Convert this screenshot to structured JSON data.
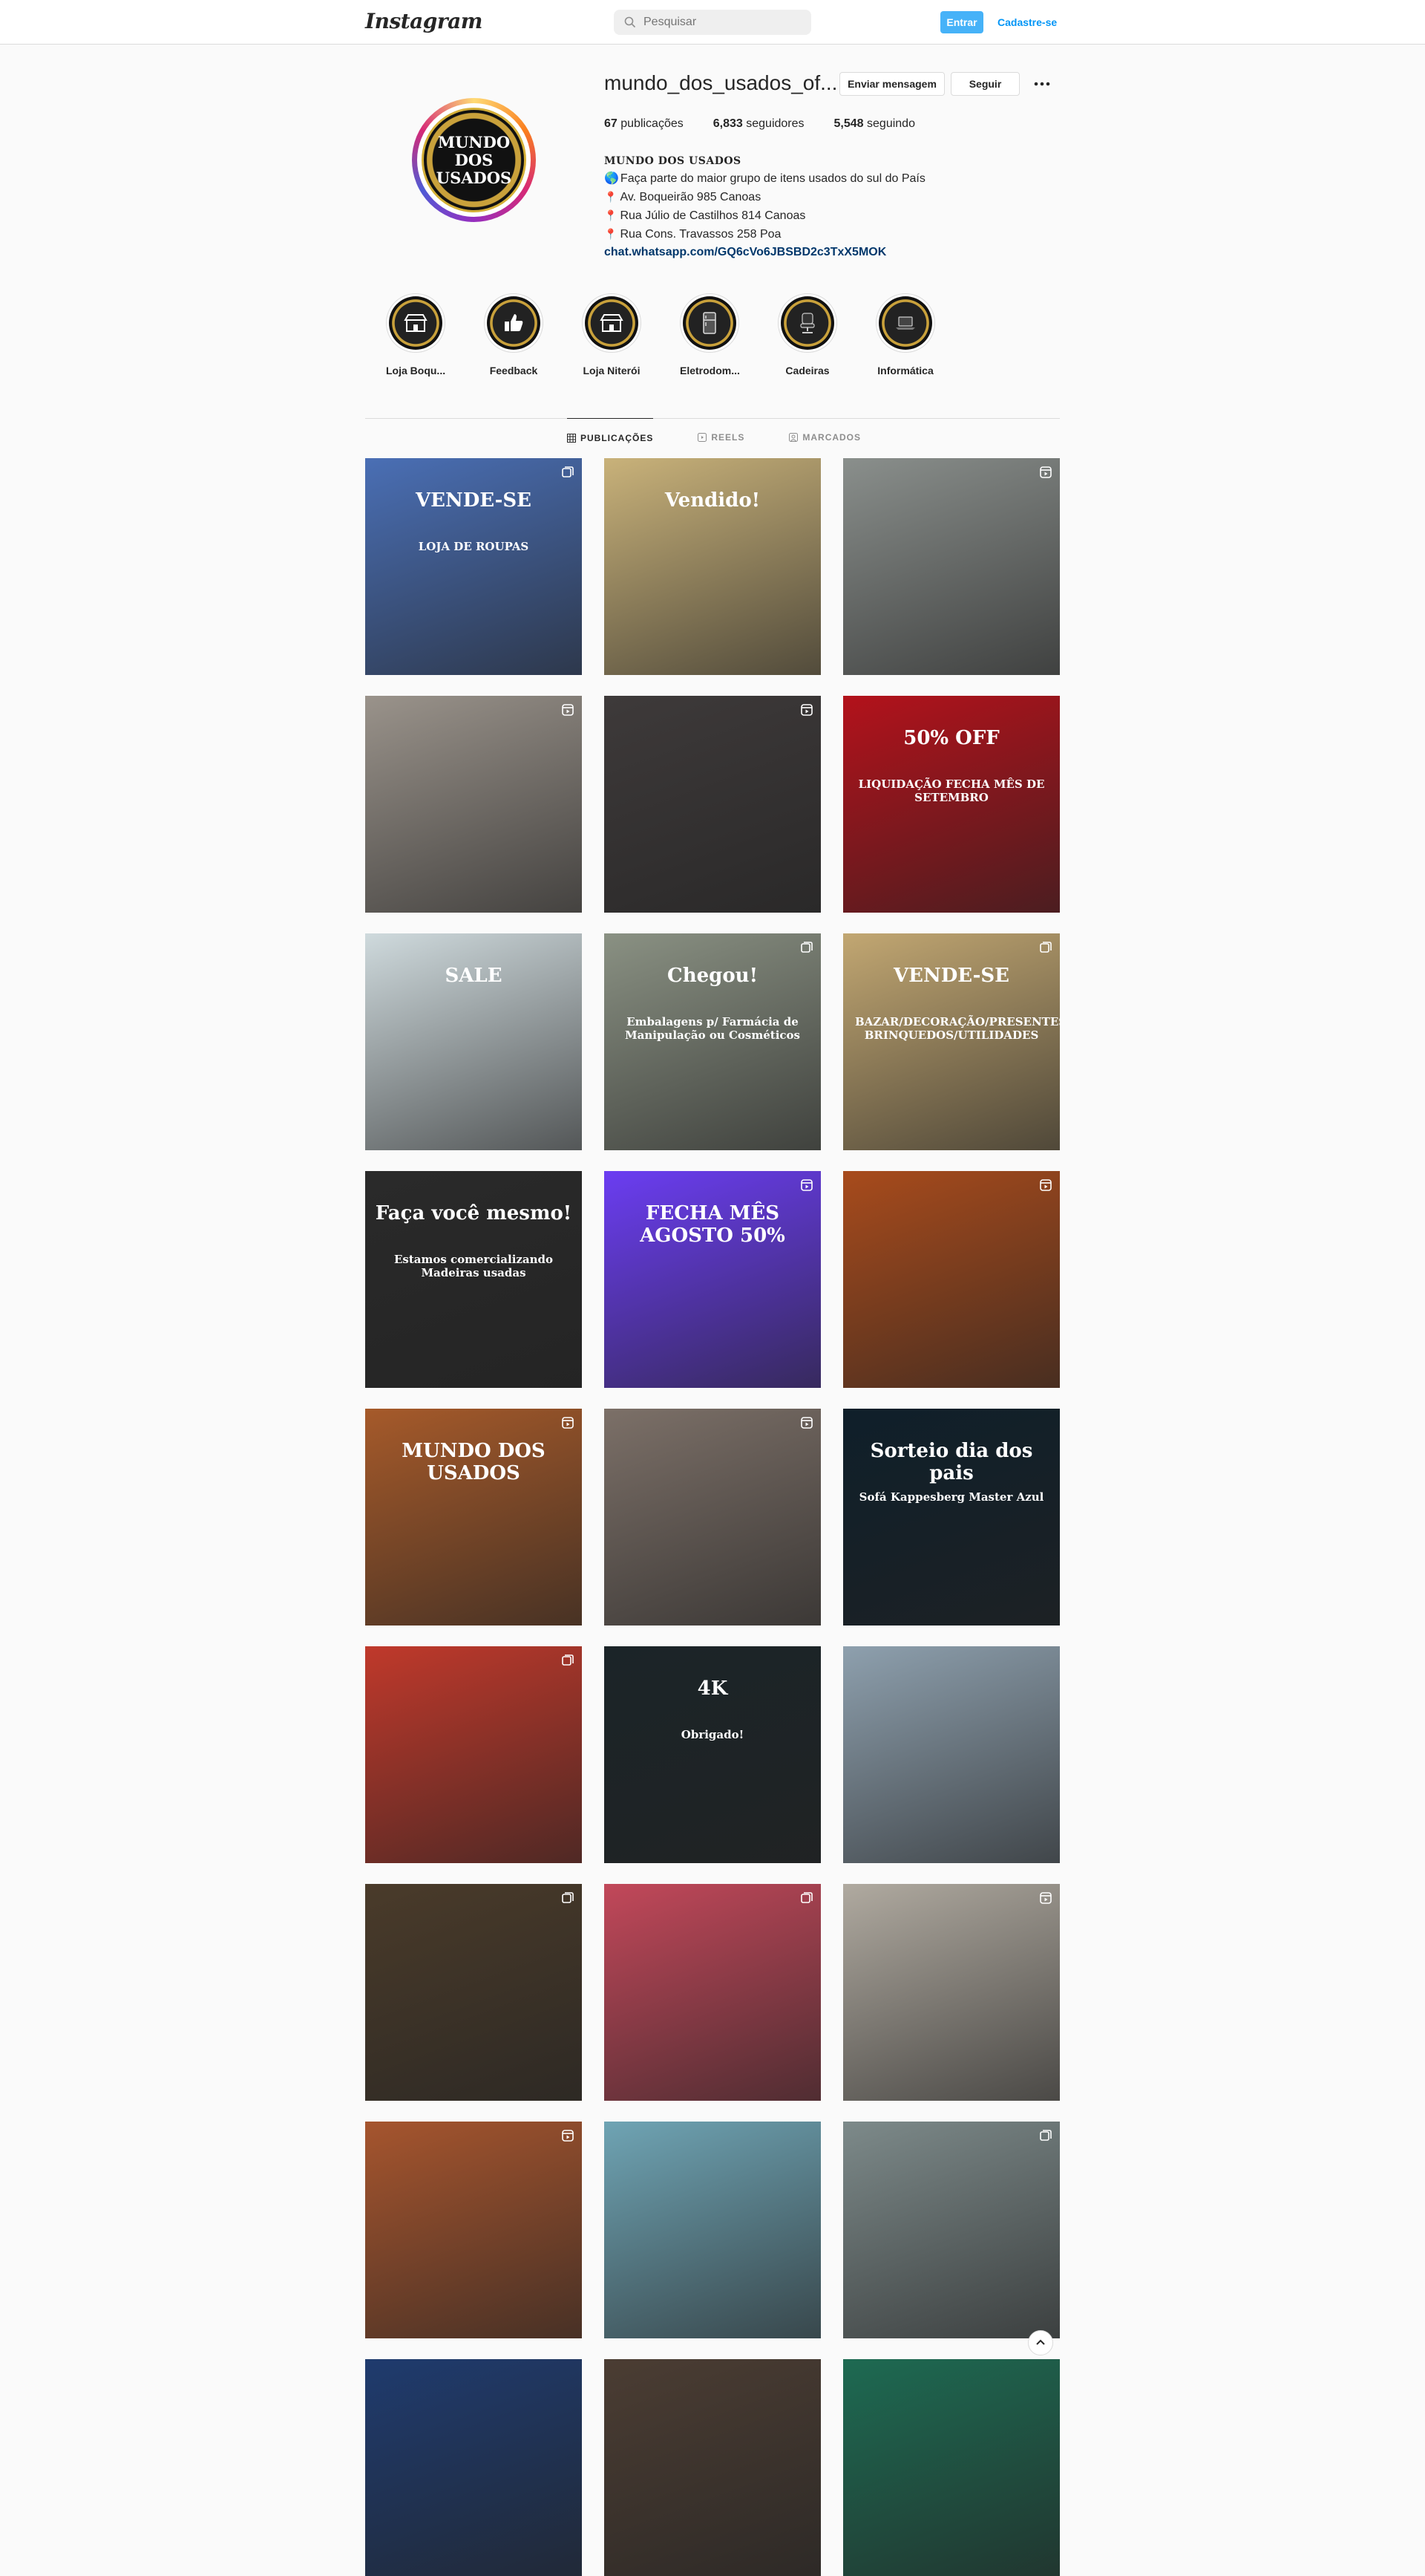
{
  "nav": {
    "logo": "Instagram",
    "search_placeholder": "Pesquisar",
    "login_label": "Entrar",
    "signup_label": "Cadastre-se"
  },
  "profile": {
    "username": "mundo_dos_usados_of...",
    "message_label": "Enviar mensagem",
    "follow_label": "Seguir",
    "avatar_text": [
      "MUNDO",
      "DOS",
      "USADOS"
    ],
    "stats": {
      "posts_count": "67",
      "posts_label": "publicações",
      "followers_count": "6,833",
      "followers_label": "seguidores",
      "following_count": "5,548",
      "following_label": "seguindo"
    },
    "bio": {
      "name": "MUNDO DOS USADOS",
      "line1": "Faça parte do maior grupo de itens usados do sul do País",
      "line2": "Av. Boqueirão 985 Canoas",
      "line3": "Rua Júlio de Castilhos 814 Canoas",
      "line4": "Rua Cons. Travassos 258 Poa",
      "link": "chat.whatsapp.com/GQ6cVo6JBSBD2c3TxX5MOK"
    }
  },
  "highlights": [
    {
      "label": "Loja Boqu...",
      "icon": "store-icon"
    },
    {
      "label": "Feedback",
      "icon": "thumbs-up-icon"
    },
    {
      "label": "Loja Niterói",
      "icon": "store-icon"
    },
    {
      "label": "Eletrodom...",
      "icon": "fridge-icon"
    },
    {
      "label": "Cadeiras",
      "icon": "chair-icon"
    },
    {
      "label": "Informática",
      "icon": "laptop-icon"
    }
  ],
  "tabs": [
    {
      "label": "PUBLICAÇÕES",
      "active": true
    },
    {
      "label": "REELS",
      "active": false
    },
    {
      "label": "MARCADOS",
      "active": false
    }
  ],
  "posts": [
    {
      "caption": "VENDE-SE",
      "subcaption": "LOJA DE ROUPAS",
      "bg": "#4a6fb5",
      "type": "carousel"
    },
    {
      "caption": "Vendido!",
      "subcaption": "",
      "bg": "#c9b27a",
      "type": "none"
    },
    {
      "caption": "",
      "subcaption": "",
      "bg": "#8a8f8c",
      "type": "reel"
    },
    {
      "caption": "",
      "subcaption": "",
      "bg": "#9a938b",
      "type": "reel"
    },
    {
      "caption": "",
      "subcaption": "",
      "bg": "#3e3a3a",
      "type": "reel"
    },
    {
      "caption": "50% OFF",
      "subcaption": "LIQUIDAÇÃO FECHA MÊS DE SETEMBRO",
      "bg": "#b3121b",
      "type": "none"
    },
    {
      "caption": "SALE",
      "subcaption": "",
      "bg": "#cfdadd",
      "type": "none"
    },
    {
      "caption": "Chegou!",
      "subcaption": "Embalagens p/ Farmácia de Manipulação ou Cosméticos",
      "bg": "#8a9183",
      "type": "carousel"
    },
    {
      "caption": "VENDE-SE",
      "subcaption": "BAZAR/DECORAÇÃO/PRESENTES/ BRINQUEDOS/UTILIDADES",
      "bg": "#c2a772",
      "type": "carousel"
    },
    {
      "caption": "Faça você mesmo!",
      "subcaption": "Estamos comercializando Madeiras usadas",
      "bg": "#2a2a2a",
      "type": "none"
    },
    {
      "caption": "FECHA MÊS AGOSTO 50%",
      "subcaption": "",
      "bg": "#6b3df2",
      "type": "reel"
    },
    {
      "caption": "",
      "subcaption": "",
      "bg": "#a84b1c",
      "type": "reel"
    },
    {
      "caption": "MUNDO DOS USADOS",
      "subcaption": "",
      "bg": "#a65a2a",
      "type": "reel"
    },
    {
      "caption": "",
      "subcaption": "",
      "bg": "#7c7068",
      "type": "reel"
    },
    {
      "caption": "Sorteio dia dos pais",
      "subcaption": "Sofá Kappesberg Master Azul",
      "bg": "#0f1f2a",
      "type": "none"
    },
    {
      "caption": "",
      "subcaption": "",
      "bg": "#c0392b",
      "type": "carousel"
    },
    {
      "caption": "4K",
      "subcaption": "Obrigado!",
      "bg": "#1b2428",
      "type": "none"
    },
    {
      "caption": "",
      "subcaption": "",
      "bg": "#8ea0ae",
      "type": "none"
    },
    {
      "caption": "",
      "subcaption": "",
      "bg": "#4a3b2a",
      "type": "carousel"
    },
    {
      "caption": "",
      "subcaption": "",
      "bg": "#c2485a",
      "type": "carousel"
    },
    {
      "caption": "",
      "subcaption": "",
      "bg": "#b0aaa0",
      "type": "reel"
    },
    {
      "caption": "",
      "subcaption": "",
      "bg": "#a6552e",
      "type": "reel"
    },
    {
      "caption": "",
      "subcaption": "",
      "bg": "#6fa4b4",
      "type": "none"
    },
    {
      "caption": "",
      "subcaption": "",
      "bg": "#7d8a8a",
      "type": "carousel"
    },
    {
      "caption": "",
      "subcaption": "",
      "bg": "#1f3b6e",
      "type": "none"
    },
    {
      "caption": "",
      "subcaption": "",
      "bg": "#4b3d33",
      "type": "none"
    },
    {
      "caption": "",
      "subcaption": "",
      "bg": "#1e6a52",
      "type": "none"
    }
  ],
  "colors": {
    "accent": "#0095f6",
    "link": "#00376b",
    "border": "#dbdbdb",
    "muted": "#8e8e8e"
  }
}
